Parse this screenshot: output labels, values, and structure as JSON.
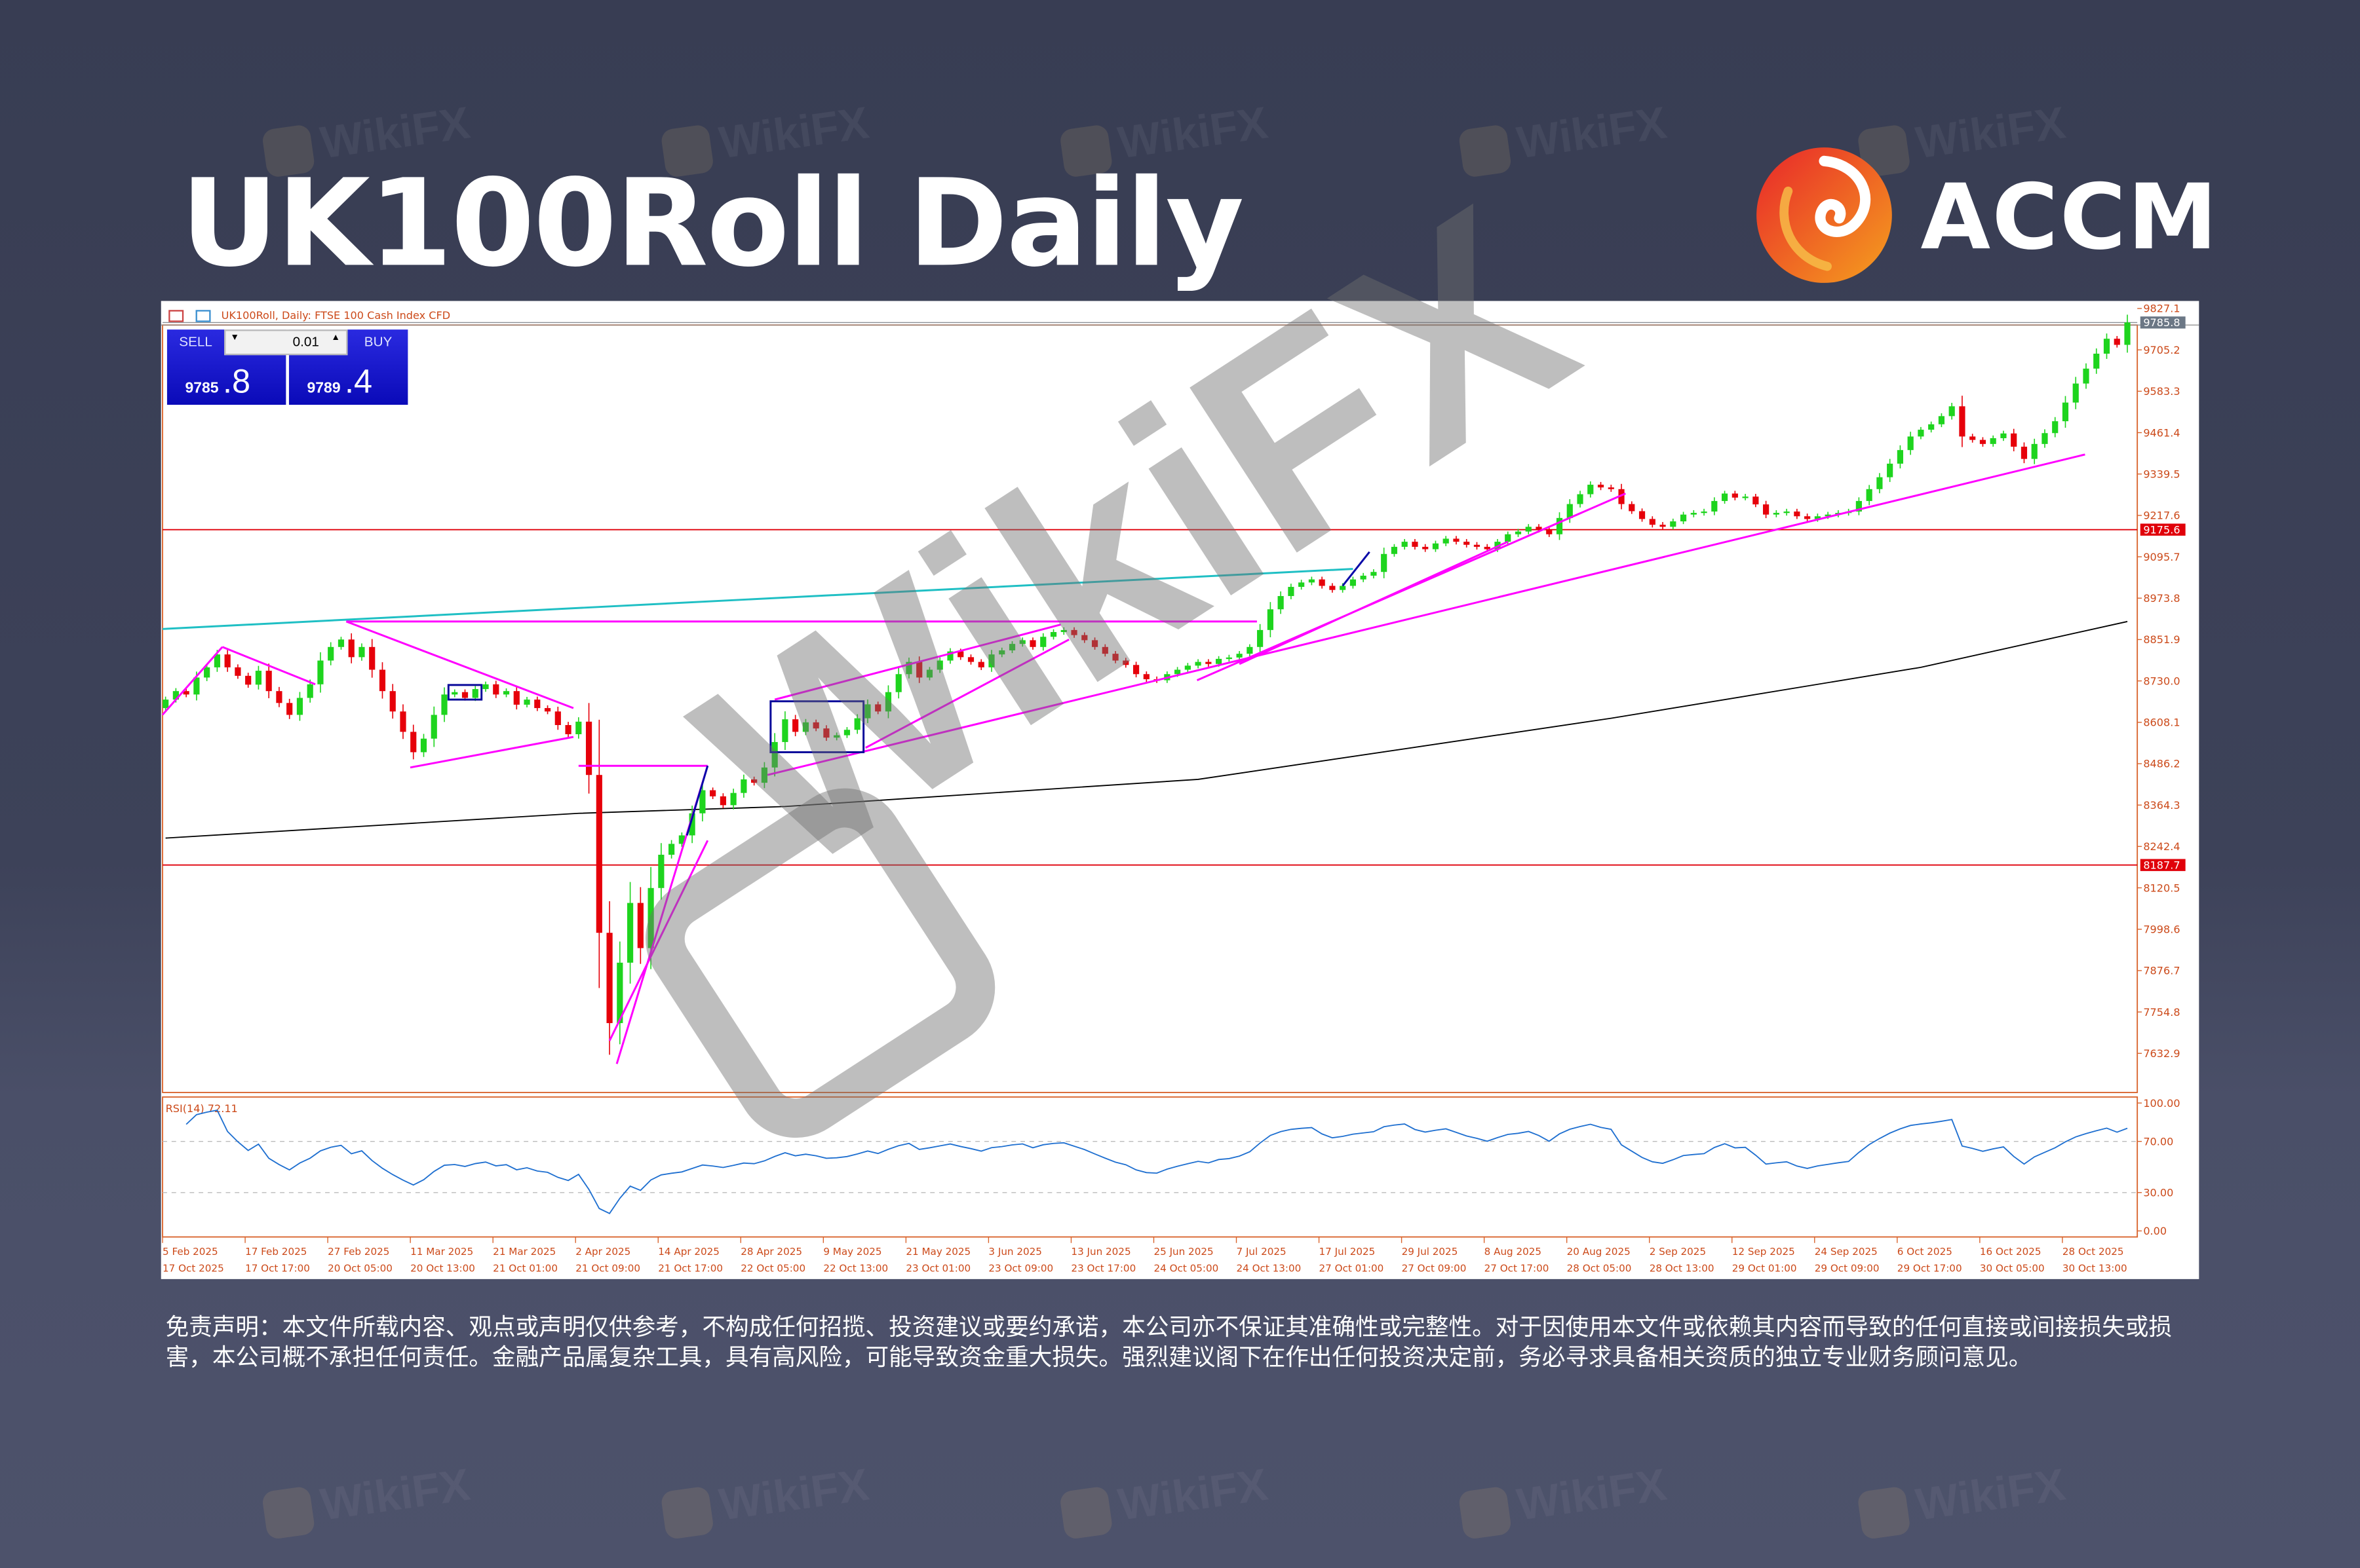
{
  "title": "UK100Roll Daily",
  "brand": {
    "logo_text": "ACCM",
    "colors": {
      "red": "#e8262a",
      "orange": "#f39a1e"
    }
  },
  "watermark": "WikiFX",
  "chart_header": {
    "text": "UK100Roll, Daily: FTSE 100 Cash Index CFD"
  },
  "trade_panel": {
    "sell_label": "SELL",
    "buy_label": "BUY",
    "lot": "0.01",
    "sell_price_main": "9785",
    "sell_price_big": ".8",
    "buy_price_main": "9789",
    "buy_price_big": ".4",
    "down_arrow": "▼",
    "up_arrow": "▲"
  },
  "rsi": {
    "label": "RSI(14) 72.11",
    "period": 14,
    "levels": [
      70,
      30
    ],
    "ticks": [
      "100.00",
      "70.00",
      "30.00",
      "0.00"
    ]
  },
  "disclaimer": "免责声明：本文件所载内容、观点或声明仅供参考，不构成任何招揽、投资建议或要约承诺，本公司亦不保证其准确性或完整性。对于因使用本文件或依赖其内容而导致的任何直接或间接损失或损害，本公司概不承担任何责任。金融产品属复杂工具，具有高风险，可能导致资金重大损失。强烈建议阁下在作出任何投资决定前，务必寻求具备相关资质的独立专业财务顾问意见。",
  "chart_data": {
    "type": "candlestick",
    "symbol": "UK100Roll",
    "timeframe": "Daily",
    "ylim": [
      7632.9,
      9827.1
    ],
    "y_ticks": [
      "9827.1",
      "9705.2",
      "9583.3",
      "9461.4",
      "9339.5",
      "9217.6",
      "9095.7",
      "8973.8",
      "8851.9",
      "8730.0",
      "8608.1",
      "8486.2",
      "8364.3",
      "8242.4",
      "8120.5",
      "7998.6",
      "7876.7",
      "7754.8",
      "7632.9"
    ],
    "current_price": {
      "label": "9785.8",
      "value": 9785.8,
      "color": "#6b7785"
    },
    "horizontal_levels": [
      {
        "label": "9175.6",
        "value": 9175.6,
        "color": "#e0000a"
      },
      {
        "label": "8187.7",
        "value": 8187.7,
        "color": "#e0000a"
      }
    ],
    "x_ticks": [
      {
        "date": "5 Feb 2025",
        "sub": "17 Oct 2025"
      },
      {
        "date": "17 Feb 2025",
        "sub": "17 Oct 17:00"
      },
      {
        "date": "27 Feb 2025",
        "sub": "20 Oct 05:00"
      },
      {
        "date": "11 Mar 2025",
        "sub": "20 Oct 13:00"
      },
      {
        "date": "21 Mar 2025",
        "sub": "21 Oct 01:00"
      },
      {
        "date": "2 Apr 2025",
        "sub": "21 Oct 09:00"
      },
      {
        "date": "14 Apr 2025",
        "sub": "21 Oct 17:00"
      },
      {
        "date": "28 Apr 2025",
        "sub": "22 Oct 05:00"
      },
      {
        "date": "9 May 2025",
        "sub": "22 Oct 13:00"
      },
      {
        "date": "21 May 2025",
        "sub": "23 Oct 01:00"
      },
      {
        "date": "3 Jun 2025",
        "sub": "23 Oct 09:00"
      },
      {
        "date": "13 Jun 2025",
        "sub": "23 Oct 17:00"
      },
      {
        "date": "25 Jun 2025",
        "sub": "24 Oct 05:00"
      },
      {
        "date": "7 Jul 2025",
        "sub": "24 Oct 13:00"
      },
      {
        "date": "17 Jul 2025",
        "sub": "27 Oct 01:00"
      },
      {
        "date": "29 Jul 2025",
        "sub": "27 Oct 09:00"
      },
      {
        "date": "8 Aug 2025",
        "sub": "27 Oct 17:00"
      },
      {
        "date": "20 Aug 2025",
        "sub": "28 Oct 05:00"
      },
      {
        "date": "2 Sep 2025",
        "sub": "28 Oct 13:00"
      },
      {
        "date": "12 Sep 2025",
        "sub": "29 Oct 01:00"
      },
      {
        "date": "24 Sep 2025",
        "sub": "29 Oct 09:00"
      },
      {
        "date": "6 Oct 2025",
        "sub": "29 Oct 17:00"
      },
      {
        "date": "16 Oct 2025",
        "sub": "30 Oct 05:00"
      },
      {
        "date": "28 Oct 2025",
        "sub": "30 Oct 13:00"
      }
    ],
    "bars_per_x_tick": 8,
    "first_open": 8650,
    "closes": [
      8675,
      8700,
      8690,
      8740,
      8770,
      8808,
      8770,
      8745,
      8719,
      8760,
      8700,
      8665,
      8630,
      8680,
      8720,
      8790,
      8830,
      8852,
      8800,
      8830,
      8763,
      8700,
      8640,
      8580,
      8520,
      8560,
      8630,
      8690,
      8697,
      8680,
      8706,
      8720,
      8690,
      8700,
      8660,
      8675,
      8650,
      8640,
      8600,
      8573,
      8610,
      8453,
      7988,
      7722,
      7900,
      8076,
      7943,
      8120,
      8218,
      8250,
      8275,
      8340,
      8408,
      8390,
      8364,
      8400,
      8440,
      8430,
      8475,
      8550,
      8617,
      8580,
      8608,
      8590,
      8563,
      8570,
      8586,
      8620,
      8661,
      8640,
      8697,
      8750,
      8786,
      8740,
      8763,
      8790,
      8817,
      8800,
      8786,
      8770,
      8808,
      8820,
      8839,
      8850,
      8830,
      8860,
      8874,
      8880,
      8865,
      8850,
      8830,
      8810,
      8790,
      8777,
      8750,
      8735,
      8732,
      8750,
      8763,
      8775,
      8786,
      8780,
      8795,
      8799,
      8810,
      8830,
      8880,
      8941,
      8980,
      9007,
      9020,
      9029,
      9010,
      8998,
      9010,
      9029,
      9040,
      9051,
      9104,
      9125,
      9140,
      9125,
      9118,
      9135,
      9149,
      9140,
      9131,
      9125,
      9118,
      9140,
      9162,
      9170,
      9184,
      9175,
      9162,
      9210,
      9251,
      9280,
      9308,
      9300,
      9295,
      9251,
      9230,
      9207,
      9190,
      9184,
      9200,
      9220,
      9225,
      9229,
      9260,
      9282,
      9270,
      9273,
      9250,
      9220,
      9225,
      9229,
      9215,
      9207,
      9215,
      9220,
      9225,
      9229,
      9260,
      9295,
      9330,
      9370,
      9410,
      9450,
      9470,
      9486,
      9510,
      9539,
      9450,
      9440,
      9428,
      9445,
      9459,
      9420,
      9384,
      9428,
      9460,
      9495,
      9550,
      9606,
      9650,
      9694,
      9738,
      9720,
      9785.8
    ],
    "moving_average": {
      "color": "#000000",
      "points": [
        [
          0,
          8267
        ],
        [
          40,
          8340
        ],
        [
          60,
          8360
        ],
        [
          100,
          8440
        ],
        [
          140,
          8620
        ],
        [
          170,
          8770
        ],
        [
          190,
          8905
        ]
      ]
    },
    "colors": {
      "up": "#1ed41e",
      "down": "#e6000a",
      "trendline": "#ff00ff",
      "cyan_line": "#1fbfc4",
      "box": "#0a0a9a"
    },
    "trendlines": [
      {
        "color": "#1fbfc4",
        "from": [
          -0.3,
          8883
        ],
        "to": [
          115,
          9060
        ]
      },
      {
        "color": "#ff00ff",
        "from": [
          17.5,
          8905
        ],
        "to": [
          105.7,
          8905
        ]
      },
      {
        "color": "#ff00ff",
        "from": [
          40,
          8480
        ],
        "to": [
          52.5,
          8480
        ]
      },
      {
        "color": "#ff00ff",
        "from": [
          -0.3,
          8630
        ],
        "to": [
          5.5,
          8830
        ]
      },
      {
        "color": "#ff00ff",
        "from": [
          5.5,
          8830
        ],
        "to": [
          14.5,
          8720
        ]
      },
      {
        "color": "#ff00ff",
        "from": [
          17.5,
          8905
        ],
        "to": [
          39.5,
          8650
        ]
      },
      {
        "color": "#ff00ff",
        "from": [
          23.7,
          8475
        ],
        "to": [
          39.5,
          8565
        ]
      },
      {
        "color": "#ff00ff",
        "from": [
          43.7,
          7602
        ],
        "to": [
          52.5,
          8480
        ]
      },
      {
        "color": "#ff00ff",
        "from": [
          43,
          7670
        ],
        "to": [
          52.5,
          8260
        ]
      },
      {
        "color": "#ff00ff",
        "from": [
          58.3,
          8453
        ],
        "to": [
          185.9,
          9397
        ]
      },
      {
        "color": "#ff00ff",
        "from": [
          59,
          8675
        ],
        "to": [
          86.7,
          8896
        ]
      },
      {
        "color": "#ff00ff",
        "from": [
          67.8,
          8533
        ],
        "to": [
          87.5,
          8852
        ]
      },
      {
        "color": "#ff00ff",
        "from": [
          99.9,
          8732
        ],
        "to": [
          141.4,
          9282
        ]
      },
      {
        "color": "#ff00ff",
        "from": [
          104,
          8780
        ],
        "to": [
          130,
          9140
        ]
      },
      {
        "color": "#0a0aa8",
        "from": [
          114,
          9010
        ],
        "to": [
          116.6,
          9110
        ]
      },
      {
        "color": "#0a0aa8",
        "from": [
          50.5,
          8275
        ],
        "to": [
          52.5,
          8480
        ]
      }
    ],
    "boxes": [
      {
        "color": "#0a0a9a",
        "from": [
          58.6,
          8670
        ],
        "to": [
          67.6,
          8520
        ]
      },
      {
        "color": "#0a0a9a",
        "from": [
          27.4,
          8718
        ],
        "to": [
          30.6,
          8675
        ]
      }
    ]
  }
}
